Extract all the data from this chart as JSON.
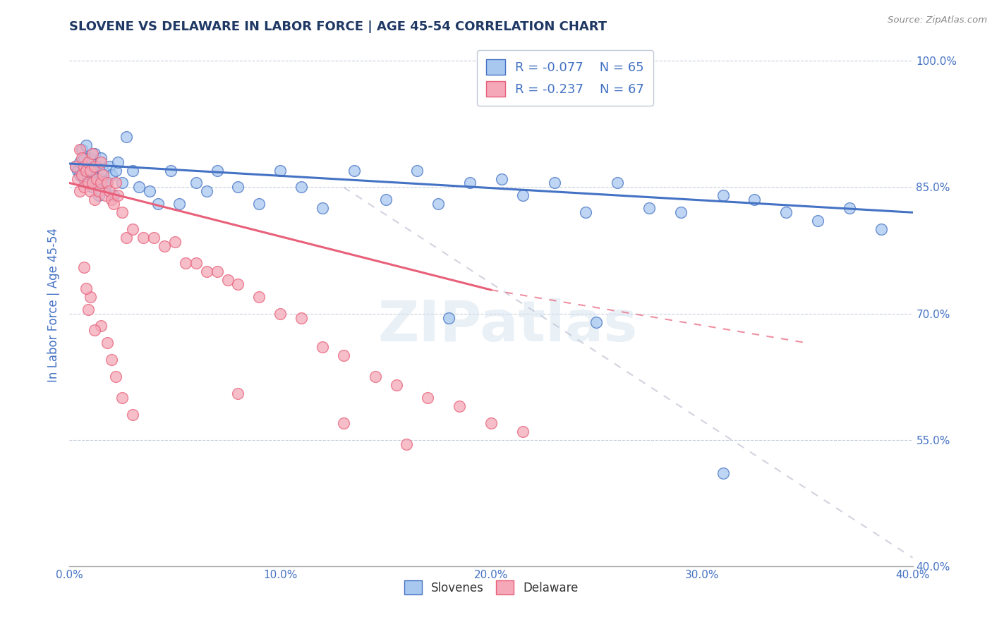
{
  "title": "SLOVENE VS DELAWARE IN LABOR FORCE | AGE 45-54 CORRELATION CHART",
  "source": "Source: ZipAtlas.com",
  "xlabel_bottom": "Slovenes",
  "xlabel_bottom2": "Delaware",
  "ylabel": "In Labor Force | Age 45-54",
  "xlim": [
    0.0,
    0.4
  ],
  "ylim": [
    0.4,
    1.02
  ],
  "yticks": [
    0.4,
    0.55,
    0.7,
    0.85,
    1.0
  ],
  "ytick_labels": [
    "40.0%",
    "55.0%",
    "70.0%",
    "85.0%",
    "100.0%"
  ],
  "xticks": [
    0.0,
    0.1,
    0.2,
    0.3,
    0.4
  ],
  "xtick_labels": [
    "0.0%",
    "10.0%",
    "20.0%",
    "30.0%",
    "40.0%"
  ],
  "R_slovene": -0.077,
  "N_slovene": 65,
  "R_delaware": -0.237,
  "N_delaware": 67,
  "color_slovene": "#A8C8F0",
  "color_delaware": "#F4A8B8",
  "color_slovene_line": "#4472C4",
  "color_delaware_line": "#E8607A",
  "color_ref_line": "#C8C8D8",
  "title_color": "#1F3864",
  "axis_color": "#4472C4",
  "slovene_line_x": [
    0.0,
    0.4
  ],
  "slovene_line_y": [
    0.878,
    0.82
  ],
  "delaware_line_x": [
    0.0,
    0.35
  ],
  "delaware_line_y": [
    0.855,
    0.665
  ],
  "ref_line_x": [
    0.13,
    0.4
  ],
  "ref_line_y": [
    0.85,
    0.41
  ],
  "slovene_scatter_x": [
    0.003,
    0.004,
    0.005,
    0.005,
    0.006,
    0.007,
    0.007,
    0.008,
    0.008,
    0.009,
    0.01,
    0.01,
    0.011,
    0.011,
    0.012,
    0.012,
    0.013,
    0.014,
    0.015,
    0.015,
    0.016,
    0.017,
    0.018,
    0.019,
    0.02,
    0.021,
    0.022,
    0.023,
    0.025,
    0.027,
    0.03,
    0.033,
    0.038,
    0.042,
    0.048,
    0.052,
    0.06,
    0.065,
    0.07,
    0.08,
    0.09,
    0.1,
    0.11,
    0.12,
    0.135,
    0.15,
    0.165,
    0.175,
    0.19,
    0.205,
    0.215,
    0.23,
    0.245,
    0.26,
    0.275,
    0.29,
    0.31,
    0.325,
    0.34,
    0.355,
    0.37,
    0.385,
    0.18,
    0.25,
    0.31
  ],
  "slovene_scatter_y": [
    0.875,
    0.87,
    0.88,
    0.865,
    0.895,
    0.885,
    0.86,
    0.9,
    0.855,
    0.875,
    0.885,
    0.865,
    0.87,
    0.85,
    0.89,
    0.86,
    0.875,
    0.84,
    0.86,
    0.885,
    0.87,
    0.85,
    0.855,
    0.875,
    0.865,
    0.84,
    0.87,
    0.88,
    0.855,
    0.91,
    0.87,
    0.85,
    0.845,
    0.83,
    0.87,
    0.83,
    0.855,
    0.845,
    0.87,
    0.85,
    0.83,
    0.87,
    0.85,
    0.825,
    0.87,
    0.835,
    0.87,
    0.83,
    0.855,
    0.86,
    0.84,
    0.855,
    0.82,
    0.855,
    0.825,
    0.82,
    0.84,
    0.835,
    0.82,
    0.81,
    0.825,
    0.8,
    0.695,
    0.69,
    0.51
  ],
  "delaware_scatter_x": [
    0.003,
    0.004,
    0.005,
    0.005,
    0.006,
    0.006,
    0.007,
    0.007,
    0.008,
    0.009,
    0.009,
    0.01,
    0.01,
    0.011,
    0.011,
    0.012,
    0.012,
    0.013,
    0.014,
    0.015,
    0.015,
    0.016,
    0.017,
    0.018,
    0.019,
    0.02,
    0.021,
    0.022,
    0.023,
    0.025,
    0.027,
    0.03,
    0.035,
    0.04,
    0.045,
    0.05,
    0.055,
    0.06,
    0.065,
    0.07,
    0.075,
    0.08,
    0.09,
    0.1,
    0.11,
    0.12,
    0.13,
    0.145,
    0.155,
    0.17,
    0.185,
    0.2,
    0.215,
    0.08,
    0.13,
    0.16,
    0.01,
    0.015,
    0.007,
    0.008,
    0.009,
    0.012,
    0.018,
    0.02,
    0.022,
    0.025,
    0.03
  ],
  "delaware_scatter_y": [
    0.875,
    0.86,
    0.895,
    0.845,
    0.885,
    0.865,
    0.875,
    0.85,
    0.87,
    0.88,
    0.855,
    0.87,
    0.845,
    0.89,
    0.855,
    0.875,
    0.835,
    0.86,
    0.845,
    0.88,
    0.855,
    0.865,
    0.84,
    0.855,
    0.845,
    0.835,
    0.83,
    0.855,
    0.84,
    0.82,
    0.79,
    0.8,
    0.79,
    0.79,
    0.78,
    0.785,
    0.76,
    0.76,
    0.75,
    0.75,
    0.74,
    0.735,
    0.72,
    0.7,
    0.695,
    0.66,
    0.65,
    0.625,
    0.615,
    0.6,
    0.59,
    0.57,
    0.56,
    0.605,
    0.57,
    0.545,
    0.72,
    0.685,
    0.755,
    0.73,
    0.705,
    0.68,
    0.665,
    0.645,
    0.625,
    0.6,
    0.58
  ]
}
